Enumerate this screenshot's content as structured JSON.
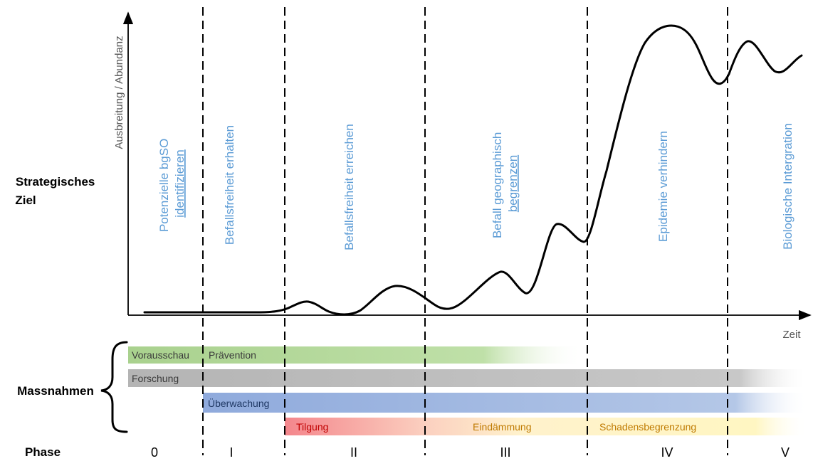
{
  "axis": {
    "y_label": "Ausbreitung / Abundanz",
    "x_label": "Zeit"
  },
  "row_labels": {
    "strategic_goal_line1": "Strategisches",
    "strategic_goal_line2": "Ziel",
    "measures": "Massnahmen",
    "phase": "Phase"
  },
  "goals": [
    {
      "lines": [
        "Potenzielle bgSO",
        "identifizieren"
      ]
    },
    {
      "lines": [
        "Befallsfreiheit erhalten"
      ]
    },
    {
      "lines": [
        "Befallsfreiheit erreichen"
      ]
    },
    {
      "lines": [
        "Befall geographisch",
        "begrenzen"
      ]
    },
    {
      "lines": [
        "Epidemie verhindern"
      ]
    },
    {
      "lines": [
        "Biologische Intergration"
      ]
    }
  ],
  "measures": {
    "vorausschau": "Vorausschau",
    "praevention": "Prävention",
    "forschung": "Forschung",
    "ueberwachung": "Überwachung",
    "tilgung": "Tilgung",
    "eindaemmung": "Eindämmung",
    "schadensbegrenzung": "Schadensbegrenzung"
  },
  "phases": [
    "0",
    "I",
    "II",
    "III",
    "IV",
    "V"
  ],
  "colors": {
    "goal_text": "#5b9bd5",
    "praevention_bar": "#a9d18e",
    "forschung_bar": "#bfbfbf",
    "ueberwachung_bar": "#8faadc",
    "tilgung_bar": "#f4868c",
    "eindaemmung_bar": "#ffe699",
    "schadensbegrenzung_bar": "#fff2a8"
  }
}
